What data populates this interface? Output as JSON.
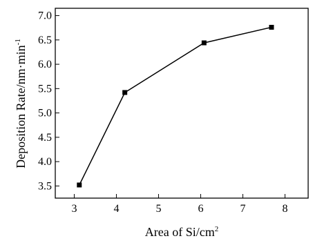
{
  "chart_data": {
    "type": "line",
    "xlabel": "Area of Si/cm",
    "xlabel_sup": "2",
    "ylabel": "Deposition Rate/nm·min",
    "ylabel_sup": "-1",
    "x_ticks": [
      "3",
      "4",
      "5",
      "6",
      "7",
      "8"
    ],
    "y_ticks": [
      "3.5",
      "4.0",
      "4.5",
      "5.0",
      "5.5",
      "6.0",
      "6.5",
      "7.0"
    ],
    "xlim": [
      2.55,
      8.55
    ],
    "ylim": [
      3.25,
      7.15
    ],
    "grid": false,
    "series": [
      {
        "x": [
          3.12,
          4.2,
          6.08,
          7.68
        ],
        "y": [
          3.52,
          5.42,
          6.44,
          6.76
        ],
        "color": "#000000",
        "marker": "square"
      }
    ]
  }
}
